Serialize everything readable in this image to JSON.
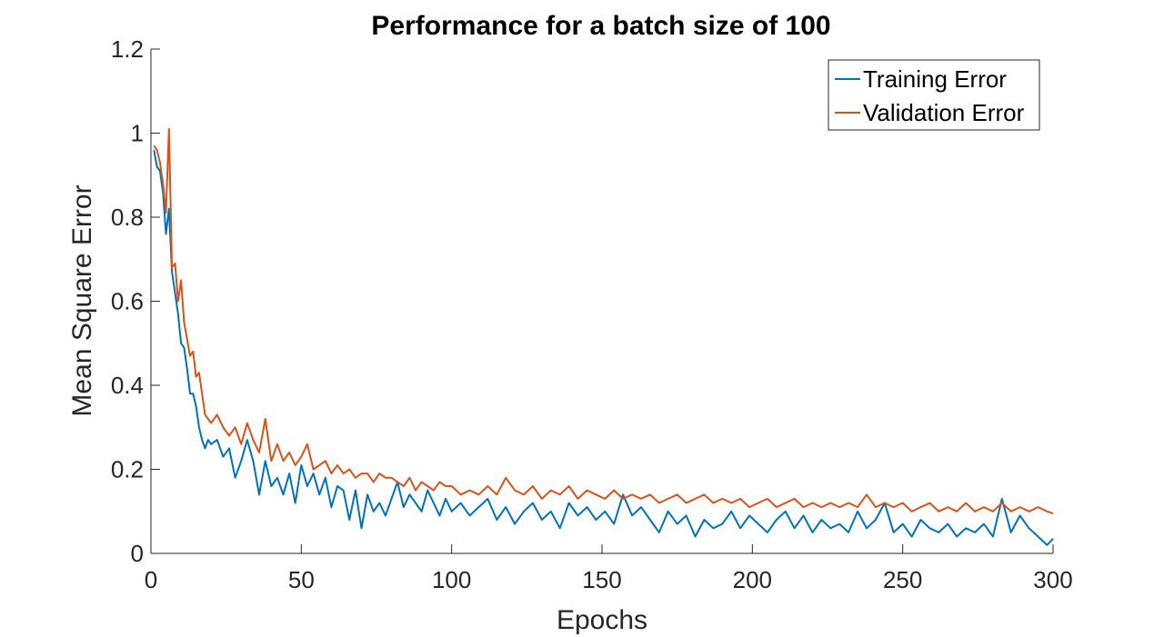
{
  "chart_data": {
    "type": "line",
    "title": "Performance for a batch size of 100",
    "xlabel": "Epochs",
    "ylabel": "Mean Square Error",
    "xlim": [
      0,
      300
    ],
    "ylim": [
      0,
      1.2
    ],
    "xticks": [
      0,
      50,
      100,
      150,
      200,
      250,
      300
    ],
    "yticks": [
      0,
      0.2,
      0.4,
      0.6,
      0.8,
      1,
      1.2
    ],
    "xtick_labels": [
      "0",
      "50",
      "100",
      "150",
      "200",
      "250",
      "300"
    ],
    "ytick_labels": [
      "0",
      "0.2",
      "0.4",
      "0.6",
      "0.8",
      "1",
      "1.2"
    ],
    "grid": false,
    "legend_position": "top-right",
    "series": [
      {
        "name": "Training Error",
        "color": "#0072BD",
        "x": [
          1,
          2,
          3,
          4,
          5,
          6,
          7,
          8,
          9,
          10,
          11,
          12,
          13,
          14,
          15,
          16,
          17,
          18,
          19,
          20,
          22,
          24,
          26,
          28,
          30,
          32,
          34,
          36,
          38,
          40,
          42,
          44,
          46,
          48,
          50,
          52,
          54,
          56,
          58,
          60,
          62,
          64,
          66,
          68,
          70,
          72,
          74,
          76,
          78,
          80,
          82,
          84,
          86,
          88,
          90,
          92,
          94,
          96,
          98,
          100,
          103,
          106,
          109,
          112,
          115,
          118,
          121,
          124,
          127,
          130,
          133,
          136,
          139,
          142,
          145,
          148,
          151,
          154,
          157,
          160,
          163,
          166,
          169,
          172,
          175,
          178,
          181,
          184,
          187,
          190,
          193,
          196,
          199,
          202,
          205,
          208,
          211,
          214,
          217,
          220,
          223,
          226,
          229,
          232,
          235,
          238,
          241,
          244,
          247,
          250,
          253,
          256,
          259,
          262,
          265,
          268,
          271,
          274,
          277,
          280,
          283,
          286,
          289,
          292,
          295,
          298,
          300
        ],
        "values": [
          0.96,
          0.92,
          0.91,
          0.86,
          0.76,
          0.82,
          0.67,
          0.62,
          0.57,
          0.5,
          0.49,
          0.44,
          0.38,
          0.38,
          0.35,
          0.3,
          0.27,
          0.25,
          0.27,
          0.26,
          0.27,
          0.23,
          0.25,
          0.18,
          0.22,
          0.27,
          0.22,
          0.14,
          0.22,
          0.16,
          0.18,
          0.14,
          0.19,
          0.12,
          0.21,
          0.16,
          0.19,
          0.14,
          0.18,
          0.11,
          0.16,
          0.15,
          0.08,
          0.15,
          0.06,
          0.14,
          0.1,
          0.12,
          0.09,
          0.13,
          0.17,
          0.11,
          0.14,
          0.12,
          0.1,
          0.15,
          0.12,
          0.09,
          0.13,
          0.1,
          0.12,
          0.09,
          0.11,
          0.13,
          0.08,
          0.11,
          0.07,
          0.1,
          0.12,
          0.08,
          0.1,
          0.06,
          0.12,
          0.09,
          0.11,
          0.08,
          0.1,
          0.07,
          0.14,
          0.09,
          0.11,
          0.08,
          0.05,
          0.1,
          0.07,
          0.09,
          0.04,
          0.08,
          0.06,
          0.07,
          0.1,
          0.06,
          0.09,
          0.07,
          0.05,
          0.08,
          0.1,
          0.06,
          0.09,
          0.05,
          0.08,
          0.06,
          0.07,
          0.05,
          0.1,
          0.06,
          0.08,
          0.12,
          0.05,
          0.07,
          0.04,
          0.08,
          0.06,
          0.05,
          0.07,
          0.04,
          0.06,
          0.05,
          0.07,
          0.04,
          0.13,
          0.05,
          0.09,
          0.06,
          0.04,
          0.02,
          0.035
        ]
      },
      {
        "name": "Validation Error",
        "color": "#D95319",
        "x": [
          1,
          2,
          3,
          4,
          5,
          6,
          7,
          8,
          9,
          10,
          11,
          12,
          13,
          14,
          15,
          16,
          17,
          18,
          19,
          20,
          22,
          24,
          26,
          28,
          30,
          32,
          34,
          36,
          38,
          40,
          42,
          44,
          46,
          48,
          50,
          52,
          54,
          56,
          58,
          60,
          62,
          64,
          66,
          68,
          70,
          72,
          74,
          76,
          78,
          80,
          82,
          84,
          86,
          88,
          90,
          92,
          94,
          96,
          98,
          100,
          103,
          106,
          109,
          112,
          115,
          118,
          121,
          124,
          127,
          130,
          133,
          136,
          139,
          142,
          145,
          148,
          151,
          154,
          157,
          160,
          163,
          166,
          169,
          172,
          175,
          178,
          181,
          184,
          187,
          190,
          193,
          196,
          199,
          202,
          205,
          208,
          211,
          214,
          217,
          220,
          223,
          226,
          229,
          232,
          235,
          238,
          241,
          244,
          247,
          250,
          253,
          256,
          259,
          262,
          265,
          268,
          271,
          274,
          277,
          280,
          283,
          286,
          289,
          292,
          295,
          298,
          300
        ],
        "values": [
          0.97,
          0.96,
          0.93,
          0.88,
          0.81,
          1.01,
          0.68,
          0.69,
          0.6,
          0.65,
          0.55,
          0.51,
          0.47,
          0.48,
          0.42,
          0.43,
          0.38,
          0.33,
          0.32,
          0.31,
          0.33,
          0.3,
          0.28,
          0.3,
          0.26,
          0.31,
          0.27,
          0.24,
          0.32,
          0.22,
          0.26,
          0.22,
          0.24,
          0.21,
          0.23,
          0.26,
          0.2,
          0.21,
          0.22,
          0.19,
          0.21,
          0.19,
          0.2,
          0.18,
          0.19,
          0.19,
          0.17,
          0.19,
          0.18,
          0.18,
          0.17,
          0.16,
          0.18,
          0.15,
          0.17,
          0.16,
          0.15,
          0.17,
          0.16,
          0.16,
          0.14,
          0.15,
          0.14,
          0.16,
          0.14,
          0.18,
          0.15,
          0.14,
          0.16,
          0.13,
          0.15,
          0.14,
          0.16,
          0.13,
          0.15,
          0.14,
          0.13,
          0.15,
          0.13,
          0.14,
          0.13,
          0.14,
          0.12,
          0.13,
          0.14,
          0.12,
          0.13,
          0.14,
          0.12,
          0.13,
          0.12,
          0.13,
          0.11,
          0.12,
          0.13,
          0.11,
          0.12,
          0.13,
          0.11,
          0.12,
          0.11,
          0.12,
          0.11,
          0.12,
          0.11,
          0.14,
          0.11,
          0.12,
          0.11,
          0.12,
          0.1,
          0.11,
          0.12,
          0.1,
          0.11,
          0.1,
          0.12,
          0.1,
          0.11,
          0.1,
          0.12,
          0.1,
          0.11,
          0.1,
          0.11,
          0.1,
          0.095
        ]
      }
    ]
  }
}
